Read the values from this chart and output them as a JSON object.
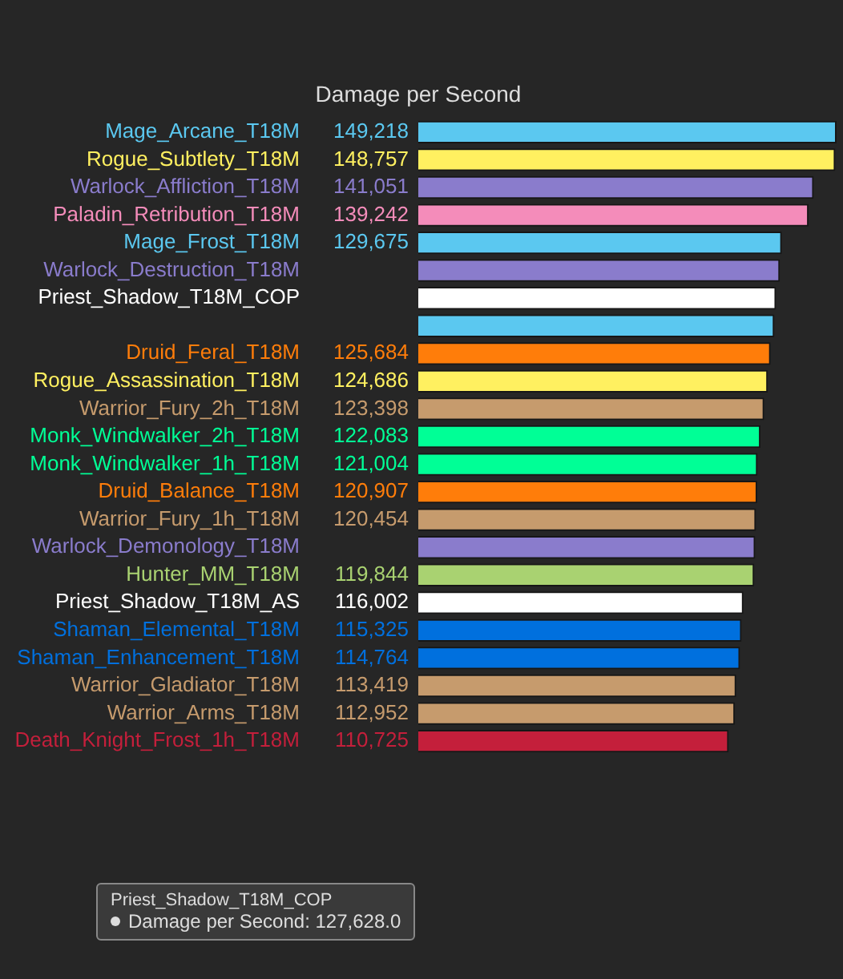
{
  "chart_data": {
    "type": "bar",
    "orientation": "horizontal",
    "title": "Damage per Second",
    "categories": [
      "Mage_Arcane_T18M",
      "Rogue_Subtlety_T18M",
      "Warlock_Affliction_T18M",
      "Paladin_Retribution_T18M",
      "Mage_Frost_T18M",
      "Warlock_Destruction_T18M",
      "Priest_Shadow_T18M_COP",
      null,
      "Druid_Feral_T18M",
      "Rogue_Assassination_T18M",
      "Warrior_Fury_2h_T18M",
      "Monk_Windwalker_2h_T18M",
      "Monk_Windwalker_1h_T18M",
      "Druid_Balance_T18M",
      "Warrior_Fury_1h_T18M",
      "Warlock_Demonology_T18M",
      "Hunter_MM_T18M",
      "Priest_Shadow_T18M_AS",
      "Shaman_Elemental_T18M",
      "Shaman_Enhancement_T18M",
      "Warrior_Gladiator_T18M",
      "Warrior_Arms_T18M",
      "Death_Knight_Frost_1h_T18M"
    ],
    "values": [
      149218,
      148757,
      141051,
      139242,
      129675,
      129000,
      127628,
      127000,
      125684,
      124686,
      123398,
      122083,
      121004,
      120907,
      120454,
      120200,
      119844,
      116002,
      115325,
      114764,
      113419,
      112952,
      110725
    ],
    "value_labels": [
      "149,218",
      "148,757",
      "141,051",
      "139,242",
      "129,675",
      null,
      null,
      null,
      "125,684",
      "124,686",
      "123,398",
      "122,083",
      "121,004",
      "120,907",
      "120,454",
      null,
      "119,844",
      "116,002",
      "115,325",
      "114,764",
      "113,419",
      "112,952",
      "110,725"
    ],
    "colors": [
      "#5bc8f0",
      "#fff060",
      "#8a7ccc",
      "#f48cba",
      "#5bc8f0",
      "#8a7ccc",
      "#ffffff",
      "#5bc8f0",
      "#ff7d0a",
      "#fff060",
      "#c69b6d",
      "#00ff96",
      "#00ff96",
      "#ff7d0a",
      "#c69b6d",
      "#8a7ccc",
      "#a9d271",
      "#ffffff",
      "#0070de",
      "#0070de",
      "#c69b6d",
      "#c69b6d",
      "#c41f3b"
    ],
    "annotations": [
      "Priest_Shadow_T18M_COP",
      "Damage per Second: 127,628.0"
    ]
  }
}
